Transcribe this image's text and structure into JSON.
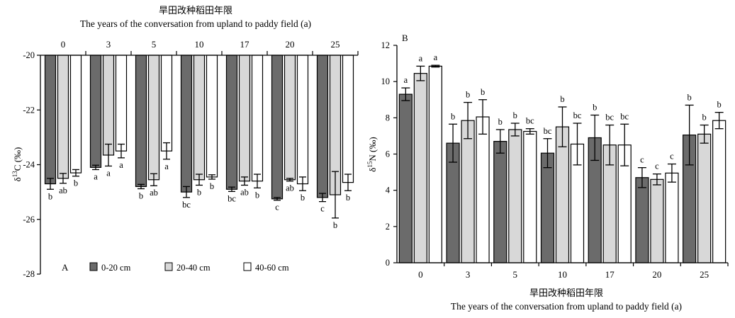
{
  "chart_data": [
    {
      "type": "bar",
      "panel_label": "A",
      "title_cn": "旱田改种稻田年限",
      "title": "The years of  the conversation from upland to paddy field (a)",
      "ylabel_main": "δ",
      "ylabel_sup": "13",
      "ylabel_rest": "C (‰)",
      "ylim": [
        -28,
        -20
      ],
      "yticks": [
        -20,
        -22,
        -24,
        -26,
        -28
      ],
      "categories": [
        "0",
        "3",
        "5",
        "10",
        "17",
        "20",
        "25"
      ],
      "colors": [
        "#6b6b6b",
        "#d8d8d8",
        "#ffffff"
      ],
      "series": [
        {
          "name": "0-20 cm",
          "values": [
            -24.7,
            -24.1,
            -24.8,
            -25.0,
            -24.9,
            -25.25,
            -25.2
          ],
          "err": [
            0.2,
            0.08,
            0.08,
            0.2,
            0.08,
            0.05,
            0.15
          ],
          "letters": [
            "b",
            "a",
            "b",
            "bc",
            "bc",
            "c",
            "c"
          ]
        },
        {
          "name": "20-40 cm",
          "values": [
            -24.5,
            -23.65,
            -24.55,
            -24.55,
            -24.6,
            -24.55,
            -25.1
          ],
          "err": [
            0.18,
            0.4,
            0.22,
            0.2,
            0.15,
            0.05,
            0.85
          ],
          "letters": [
            "ab",
            "a",
            "ab",
            "b",
            "ab",
            "ab",
            "b"
          ]
        },
        {
          "name": "40-60 cm",
          "values": [
            -24.3,
            -23.5,
            -23.5,
            -24.45,
            -24.6,
            -24.7,
            -24.65
          ],
          "err": [
            0.12,
            0.25,
            0.3,
            0.08,
            0.25,
            0.25,
            0.3
          ],
          "letters": [
            "b",
            "a",
            "a",
            "b",
            "b",
            "b",
            "b"
          ]
        }
      ]
    },
    {
      "type": "bar",
      "panel_label": "B",
      "title_cn": "旱田改种稻田年限",
      "xlabel": "The years of  the conversation from upland to paddy field (a)",
      "ylabel_main": "δ",
      "ylabel_sup": "15",
      "ylabel_rest": "N (‰)",
      "ylim": [
        0,
        12
      ],
      "yticks": [
        0,
        2,
        4,
        6,
        8,
        10,
        12
      ],
      "categories": [
        "0",
        "3",
        "5",
        "10",
        "17",
        "20",
        "25"
      ],
      "colors": [
        "#6b6b6b",
        "#d8d8d8",
        "#ffffff"
      ],
      "series": [
        {
          "name": "0-20 cm",
          "values": [
            9.3,
            6.6,
            6.7,
            6.05,
            6.9,
            4.7,
            7.05
          ],
          "err": [
            0.35,
            1.05,
            0.65,
            0.8,
            1.25,
            0.55,
            1.65
          ],
          "letters": [
            "a",
            "b",
            "b",
            "bc",
            "b",
            "c",
            "b"
          ]
        },
        {
          "name": "20-40 cm",
          "values": [
            10.45,
            7.85,
            7.35,
            7.5,
            6.5,
            4.6,
            7.1
          ],
          "err": [
            0.4,
            1.0,
            0.35,
            1.1,
            1.1,
            0.3,
            0.5
          ],
          "letters": [
            "a",
            "b",
            "b",
            "b",
            "bc",
            "c",
            "b"
          ]
        },
        {
          "name": "40-60 cm",
          "values": [
            10.85,
            8.05,
            7.25,
            6.55,
            6.5,
            4.95,
            7.85
          ],
          "err": [
            0.05,
            0.95,
            0.15,
            1.15,
            1.15,
            0.5,
            0.45
          ],
          "letters": [
            "a",
            "b",
            "bc",
            "bc",
            "bc",
            "c",
            "b"
          ]
        }
      ]
    }
  ]
}
